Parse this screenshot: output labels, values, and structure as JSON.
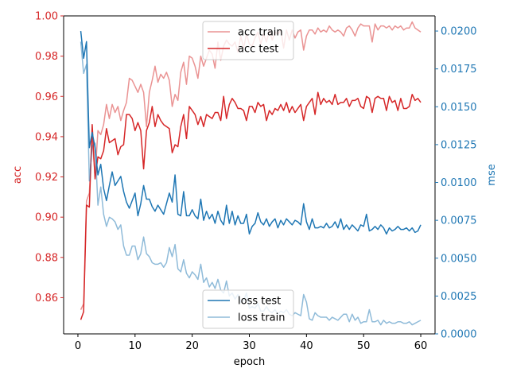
{
  "chart_data": {
    "type": "line",
    "title": "",
    "xlabel": "epoch",
    "ylabel_left": "acc",
    "ylabel_right": "mse",
    "xlim": [
      -2.5,
      62.5
    ],
    "ylim_left": [
      0.842,
      1.0
    ],
    "ylim_right": [
      0.0,
      0.021
    ],
    "x_ticks": [
      0,
      10,
      20,
      30,
      40,
      50,
      60
    ],
    "x_tick_labels": [
      "0",
      "10",
      "20",
      "30",
      "40",
      "50",
      "60"
    ],
    "y_left_ticks": [
      0.86,
      0.88,
      0.9,
      0.92,
      0.94,
      0.96,
      0.98,
      1.0
    ],
    "y_left_tick_labels": [
      "0.86",
      "0.88",
      "0.90",
      "0.92",
      "0.94",
      "0.96",
      "0.98",
      "1.00"
    ],
    "y_right_ticks": [
      0.0,
      0.0025,
      0.005,
      0.0075,
      0.01,
      0.0125,
      0.015,
      0.0175,
      0.02
    ],
    "y_right_tick_labels": [
      "0.0000",
      "0.0025",
      "0.0050",
      "0.0075",
      "0.0100",
      "0.0125",
      "0.0150",
      "0.0175",
      "0.0200"
    ],
    "grid": false,
    "colors": {
      "left_axis": "#d62728",
      "right_axis": "#1f77b4"
    },
    "legends": [
      {
        "placement": "upper-center",
        "axis": "left",
        "entries": [
          "acc train",
          "acc test"
        ]
      },
      {
        "placement": "lower-center",
        "axis": "right",
        "entries": [
          "loss test",
          "loss train"
        ]
      }
    ],
    "series": [
      {
        "name": "acc train",
        "axis": "left",
        "color": "#d62728",
        "alpha": 0.5,
        "x": [
          0.5,
          1,
          1.5,
          2,
          2.5,
          3,
          3.5,
          4,
          4.5,
          5,
          5.5,
          6,
          6.5,
          7,
          7.5,
          8,
          8.5,
          9,
          9.5,
          10,
          10.5,
          11,
          11.5,
          12,
          12.5,
          13,
          13.5,
          14,
          14.5,
          15,
          15.5,
          16,
          16.5,
          17,
          17.5,
          18,
          18.5,
          19,
          19.5,
          20,
          20.5,
          21,
          21.5,
          22,
          22.5,
          23,
          23.5,
          24,
          24.5,
          25,
          25.5,
          26,
          26.5,
          27,
          27.5,
          28,
          28.5,
          29,
          29.5,
          30,
          30.5,
          31,
          31.5,
          32,
          32.5,
          33,
          33.5,
          34,
          34.5,
          35,
          35.5,
          36,
          36.5,
          37,
          37.5,
          38,
          38.5,
          39,
          39.5,
          40,
          40.5,
          41,
          41.5,
          42,
          42.5,
          43,
          43.5,
          44,
          44.5,
          45,
          45.5,
          46,
          46.5,
          47,
          47.5,
          48,
          48.5,
          49,
          49.5,
          50,
          50.5,
          51,
          51.5,
          52,
          52.5,
          53,
          53.5,
          54,
          54.5,
          55,
          55.5,
          56,
          56.5,
          57,
          57.5,
          58,
          58.5,
          59,
          59.5,
          60
        ],
        "y": [
          0.854,
          0.857,
          0.908,
          0.912,
          0.94,
          0.92,
          0.943,
          0.941,
          0.946,
          0.956,
          0.949,
          0.956,
          0.952,
          0.955,
          0.948,
          0.953,
          0.957,
          0.969,
          0.968,
          0.965,
          0.962,
          0.966,
          0.962,
          0.945,
          0.962,
          0.968,
          0.975,
          0.967,
          0.971,
          0.969,
          0.972,
          0.968,
          0.955,
          0.961,
          0.958,
          0.972,
          0.977,
          0.966,
          0.98,
          0.979,
          0.975,
          0.969,
          0.98,
          0.975,
          0.979,
          0.983,
          0.981,
          0.974,
          0.987,
          0.978,
          0.985,
          0.988,
          0.986,
          0.985,
          0.987,
          0.982,
          0.99,
          0.984,
          0.991,
          0.986,
          0.985,
          0.989,
          0.992,
          0.986,
          0.991,
          0.987,
          0.993,
          0.988,
          0.992,
          0.991,
          0.993,
          0.984,
          0.993,
          0.988,
          0.993,
          0.989,
          0.992,
          0.993,
          0.983,
          0.99,
          0.993,
          0.993,
          0.991,
          0.994,
          0.992,
          0.993,
          0.992,
          0.995,
          0.993,
          0.992,
          0.993,
          0.992,
          0.99,
          0.994,
          0.995,
          0.993,
          0.99,
          0.994,
          0.996,
          0.995,
          0.995,
          0.995,
          0.987,
          0.996,
          0.993,
          0.995,
          0.995,
          0.994,
          0.995,
          0.993,
          0.995,
          0.994,
          0.995,
          0.993,
          0.994,
          0.994,
          0.997,
          0.994,
          0.993,
          0.992
        ]
      },
      {
        "name": "acc test",
        "axis": "left",
        "color": "#d62728",
        "alpha": 1.0,
        "x": [
          0.5,
          1,
          1.5,
          2,
          2.5,
          3,
          3.5,
          4,
          4.5,
          5,
          5.5,
          6,
          6.5,
          7,
          7.5,
          8,
          8.5,
          9,
          9.5,
          10,
          10.5,
          11,
          11.5,
          12,
          12.5,
          13,
          13.5,
          14,
          14.5,
          15,
          15.5,
          16,
          16.5,
          17,
          17.5,
          18,
          18.5,
          19,
          19.5,
          20,
          20.5,
          21,
          21.5,
          22,
          22.5,
          23,
          23.5,
          24,
          24.5,
          25,
          25.5,
          26,
          26.5,
          27,
          27.5,
          28,
          28.5,
          29,
          29.5,
          30,
          30.5,
          31,
          31.5,
          32,
          32.5,
          33,
          33.5,
          34,
          34.5,
          35,
          35.5,
          36,
          36.5,
          37,
          37.5,
          38,
          38.5,
          39,
          39.5,
          40,
          40.5,
          41,
          41.5,
          42,
          42.5,
          43,
          43.5,
          44,
          44.5,
          45,
          45.5,
          46,
          46.5,
          47,
          47.5,
          48,
          48.5,
          49,
          49.5,
          50,
          50.5,
          51,
          51.5,
          52,
          52.5,
          53,
          53.5,
          54,
          54.5,
          55,
          55.5,
          56,
          56.5,
          57,
          57.5,
          58,
          58.5,
          59,
          59.5,
          60
        ],
        "y": [
          0.849,
          0.853,
          0.906,
          0.905,
          0.946,
          0.919,
          0.93,
          0.929,
          0.933,
          0.944,
          0.937,
          0.938,
          0.939,
          0.931,
          0.935,
          0.936,
          0.951,
          0.951,
          0.949,
          0.943,
          0.947,
          0.943,
          0.924,
          0.943,
          0.947,
          0.955,
          0.945,
          0.951,
          0.948,
          0.946,
          0.945,
          0.944,
          0.932,
          0.936,
          0.935,
          0.945,
          0.951,
          0.939,
          0.955,
          0.953,
          0.951,
          0.946,
          0.95,
          0.945,
          0.951,
          0.95,
          0.949,
          0.952,
          0.952,
          0.948,
          0.96,
          0.949,
          0.956,
          0.959,
          0.957,
          0.954,
          0.954,
          0.953,
          0.948,
          0.955,
          0.955,
          0.952,
          0.957,
          0.955,
          0.956,
          0.948,
          0.953,
          0.951,
          0.954,
          0.953,
          0.956,
          0.953,
          0.957,
          0.952,
          0.955,
          0.952,
          0.954,
          0.956,
          0.948,
          0.955,
          0.957,
          0.959,
          0.951,
          0.962,
          0.956,
          0.959,
          0.957,
          0.958,
          0.956,
          0.961,
          0.956,
          0.957,
          0.957,
          0.959,
          0.955,
          0.958,
          0.958,
          0.959,
          0.955,
          0.954,
          0.96,
          0.959,
          0.952,
          0.959,
          0.96,
          0.959,
          0.959,
          0.953,
          0.96,
          0.957,
          0.958,
          0.953,
          0.959,
          0.954,
          0.954,
          0.955,
          0.961,
          0.958,
          0.959,
          0.957
        ]
      },
      {
        "name": "loss test",
        "axis": "right",
        "color": "#1f77b4",
        "alpha": 1.0,
        "x": [
          0.5,
          1,
          1.5,
          2,
          2.5,
          3,
          3.5,
          4,
          4.5,
          5,
          5.5,
          6,
          6.5,
          7,
          7.5,
          8,
          8.5,
          9,
          9.5,
          10,
          10.5,
          11,
          11.5,
          12,
          12.5,
          13,
          13.5,
          14,
          14.5,
          15,
          15.5,
          16,
          16.5,
          17,
          17.5,
          18,
          18.5,
          19,
          19.5,
          20,
          20.5,
          21,
          21.5,
          22,
          22.5,
          23,
          23.5,
          24,
          24.5,
          25,
          25.5,
          26,
          26.5,
          27,
          27.5,
          28,
          28.5,
          29,
          29.5,
          30,
          30.5,
          31,
          31.5,
          32,
          32.5,
          33,
          33.5,
          34,
          34.5,
          35,
          35.5,
          36,
          36.5,
          37,
          37.5,
          38,
          38.5,
          39,
          39.5,
          40,
          40.5,
          41,
          41.5,
          42,
          42.5,
          43,
          43.5,
          44,
          44.5,
          45,
          45.5,
          46,
          46.5,
          47,
          47.5,
          48,
          48.5,
          49,
          49.5,
          50,
          50.5,
          51,
          51.5,
          52,
          52.5,
          53,
          53.5,
          54,
          54.5,
          55,
          55.5,
          56,
          56.5,
          57,
          57.5,
          58,
          58.5,
          59,
          59.5,
          60
        ],
        "y": [
          0.02,
          0.0182,
          0.0193,
          0.0123,
          0.0133,
          0.0123,
          0.0105,
          0.0112,
          0.0096,
          0.0088,
          0.0098,
          0.0107,
          0.0098,
          0.0101,
          0.0104,
          0.0094,
          0.0087,
          0.0083,
          0.0088,
          0.0093,
          0.0078,
          0.0086,
          0.0098,
          0.0089,
          0.0089,
          0.0084,
          0.0081,
          0.0085,
          0.0082,
          0.0079,
          0.0086,
          0.0093,
          0.0087,
          0.0105,
          0.0079,
          0.0078,
          0.0094,
          0.0078,
          0.0078,
          0.0082,
          0.0078,
          0.0076,
          0.0089,
          0.0075,
          0.0081,
          0.0076,
          0.0079,
          0.0073,
          0.0081,
          0.0075,
          0.0072,
          0.0085,
          0.0073,
          0.0081,
          0.0072,
          0.0078,
          0.0073,
          0.0073,
          0.0079,
          0.0066,
          0.0071,
          0.0073,
          0.008,
          0.0074,
          0.0072,
          0.0076,
          0.0071,
          0.0074,
          0.0076,
          0.007,
          0.0075,
          0.0072,
          0.0076,
          0.0074,
          0.0072,
          0.0075,
          0.0074,
          0.0072,
          0.0086,
          0.0074,
          0.0069,
          0.0076,
          0.007,
          0.007,
          0.0071,
          0.007,
          0.0073,
          0.007,
          0.0071,
          0.0074,
          0.007,
          0.0076,
          0.0069,
          0.0072,
          0.0069,
          0.0072,
          0.007,
          0.0068,
          0.0072,
          0.0071,
          0.0079,
          0.0068,
          0.0069,
          0.0071,
          0.0069,
          0.0072,
          0.007,
          0.0066,
          0.007,
          0.0068,
          0.0069,
          0.0071,
          0.0069,
          0.0069,
          0.007,
          0.0068,
          0.007,
          0.0067,
          0.0068,
          0.0072
        ]
      },
      {
        "name": "loss train",
        "axis": "right",
        "color": "#1f77b4",
        "alpha": 0.5,
        "x": [
          0.5,
          1,
          1.5,
          2,
          2.5,
          3,
          3.5,
          4,
          4.5,
          5,
          5.5,
          6,
          6.5,
          7,
          7.5,
          8,
          8.5,
          9,
          9.5,
          10,
          10.5,
          11,
          11.5,
          12,
          12.5,
          13,
          13.5,
          14,
          14.5,
          15,
          15.5,
          16,
          16.5,
          17,
          17.5,
          18,
          18.5,
          19,
          19.5,
          20,
          20.5,
          21,
          21.5,
          22,
          22.5,
          23,
          23.5,
          24,
          24.5,
          25,
          25.5,
          26,
          26.5,
          27,
          27.5,
          28,
          28.5,
          29,
          29.5,
          30,
          30.5,
          31,
          31.5,
          32,
          32.5,
          33,
          33.5,
          34,
          34.5,
          35,
          35.5,
          36,
          36.5,
          37,
          37.5,
          38,
          38.5,
          39,
          39.5,
          40,
          40.5,
          41,
          41.5,
          42,
          42.5,
          43,
          43.5,
          44,
          44.5,
          45,
          45.5,
          46,
          46.5,
          47,
          47.5,
          48,
          48.5,
          49,
          49.5,
          50,
          50.5,
          51,
          51.5,
          52,
          52.5,
          53,
          53.5,
          54,
          54.5,
          55,
          55.5,
          56,
          56.5,
          57,
          57.5,
          58,
          58.5,
          59,
          59.5,
          60
        ],
        "y": [
          0.0193,
          0.0172,
          0.0178,
          0.0101,
          0.0124,
          0.0126,
          0.0085,
          0.0097,
          0.0079,
          0.0071,
          0.0077,
          0.0076,
          0.0074,
          0.0069,
          0.0072,
          0.0058,
          0.0052,
          0.0052,
          0.0058,
          0.0058,
          0.0049,
          0.0053,
          0.0064,
          0.0053,
          0.0051,
          0.0047,
          0.0046,
          0.0046,
          0.0047,
          0.0044,
          0.0047,
          0.0057,
          0.0051,
          0.0059,
          0.0043,
          0.0041,
          0.0049,
          0.004,
          0.0037,
          0.0041,
          0.0039,
          0.0036,
          0.0046,
          0.0034,
          0.0037,
          0.0031,
          0.0034,
          0.003,
          0.0036,
          0.0029,
          0.0027,
          0.0035,
          0.0025,
          0.0027,
          0.0023,
          0.0026,
          0.0021,
          0.0022,
          0.0027,
          0.0017,
          0.0018,
          0.0017,
          0.002,
          0.0015,
          0.0015,
          0.0018,
          0.0015,
          0.0014,
          0.0016,
          0.0013,
          0.0015,
          0.0014,
          0.0016,
          0.0013,
          0.0012,
          0.0014,
          0.0013,
          0.0012,
          0.0026,
          0.0021,
          0.001,
          0.0009,
          0.0014,
          0.0012,
          0.0011,
          0.0011,
          0.0011,
          0.0009,
          0.0011,
          0.001,
          0.0009,
          0.0011,
          0.0013,
          0.0013,
          0.0008,
          0.0013,
          0.0009,
          0.0011,
          0.0007,
          0.0008,
          0.0008,
          0.0016,
          0.0008,
          0.0008,
          0.0009,
          0.0006,
          0.0009,
          0.0007,
          0.0008,
          0.0007,
          0.0007,
          0.0008,
          0.0008,
          0.0007,
          0.0007,
          0.0008,
          0.0006,
          0.0007,
          0.0008,
          0.0009
        ]
      }
    ]
  }
}
